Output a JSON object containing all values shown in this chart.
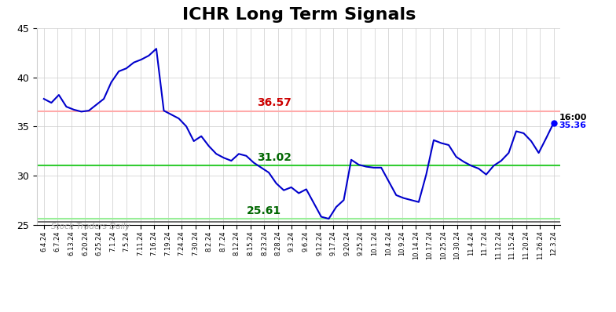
{
  "title": "ICHR Long Term Signals",
  "title_fontsize": 16,
  "title_fontweight": "bold",
  "xlabels": [
    "6.4.24",
    "6.7.24",
    "6.13.24",
    "6.20.24",
    "6.25.24",
    "7.1.24",
    "7.5.24",
    "7.11.24",
    "7.16.24",
    "7.19.24",
    "7.24.24",
    "7.30.24",
    "8.2.24",
    "8.7.24",
    "8.12.24",
    "8.15.24",
    "8.23.24",
    "8.28.24",
    "9.3.24",
    "9.6.24",
    "9.12.24",
    "9.17.24",
    "9.20.24",
    "9.25.24",
    "10.1.24",
    "10.4.24",
    "10.9.24",
    "10.14.24",
    "10.17.24",
    "10.25.24",
    "10.30.24",
    "11.4.24",
    "11.7.24",
    "11.12.24",
    "11.15.24",
    "11.20.24",
    "11.26.24",
    "12.3.24"
  ],
  "line_color": "#0000cc",
  "hline_red": 36.57,
  "hline_red_color": "#ffaaaa",
  "hline_green_upper": 31.02,
  "hline_green_upper_color": "#33cc33",
  "hline_green_lower": 25.61,
  "hline_green_lower_color": "#99ee99",
  "hline_black": 25.25,
  "hline_black_color": "#555555",
  "ylim": [
    25.0,
    45.0
  ],
  "yticks": [
    25,
    30,
    35,
    40,
    45
  ],
  "label_red_text": "36.57",
  "label_red_color": "#cc0000",
  "label_green_upper_text": "31.02",
  "label_green_upper_color": "#006600",
  "label_green_lower_text": "25.61",
  "label_green_lower_color": "#006600",
  "watermark_text": "Stock Traders Daily",
  "watermark_color": "#aaaaaa",
  "end_label_time": "16:00",
  "end_label_price": "35.36",
  "end_dot_color": "#0000ff",
  "background_color": "#ffffff",
  "grid_color": "#cccccc",
  "prices": [
    37.8,
    37.4,
    38.2,
    37.0,
    36.7,
    36.5,
    36.6,
    37.2,
    37.8,
    39.5,
    40.6,
    40.9,
    41.5,
    41.8,
    42.2,
    42.9,
    36.6,
    36.2,
    35.8,
    35.0,
    33.5,
    34.0,
    33.0,
    32.2,
    31.8,
    31.5,
    32.2,
    32.0,
    31.3,
    30.8,
    30.3,
    29.2,
    28.5,
    28.8,
    28.2,
    28.6,
    27.2,
    25.8,
    25.6,
    26.8,
    27.5,
    31.6,
    31.1,
    30.9,
    30.8,
    30.8,
    29.4,
    28.0,
    27.7,
    27.5,
    27.3,
    30.1,
    33.6,
    33.3,
    33.1,
    31.9,
    31.4,
    31.0,
    30.7,
    30.1,
    31.0,
    31.5,
    32.3,
    34.5,
    34.3,
    33.5,
    32.3,
    33.8,
    35.36
  ]
}
